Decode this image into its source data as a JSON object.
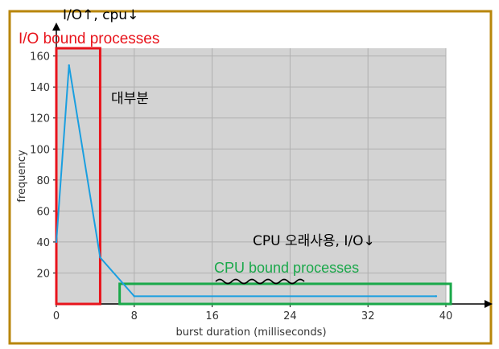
{
  "chart_data": {
    "type": "line",
    "xlabel": "burst duration (milliseconds)",
    "ylabel": "frequency",
    "xlim": [
      0,
      40
    ],
    "ylim": [
      0,
      165
    ],
    "x_ticks": [
      0,
      8,
      16,
      24,
      32,
      40
    ],
    "y_ticks": [
      20,
      40,
      60,
      80,
      100,
      120,
      140,
      160
    ],
    "grid": true,
    "series": [
      {
        "x": [
          0,
          1.3,
          4.5,
          8,
          39
        ],
        "y": [
          40,
          154,
          30,
          5,
          5
        ]
      }
    ],
    "annotations": {
      "io_label": "I/O bound processes",
      "cpu_label": "CPU bound processes",
      "handwritten_top": "I/O↑, cpu↓",
      "handwritten_mid": "대부분",
      "handwritten_cpu": "CPU 오래사용, I/O↓"
    },
    "io_box": {
      "x": [
        0,
        4.5
      ],
      "y": [
        0,
        165
      ]
    },
    "cpu_box": {
      "x": [
        6.5,
        40.5
      ],
      "y": [
        0,
        13
      ]
    }
  },
  "colors": {
    "plot_bg": "#d3d3d3",
    "grid": "#b0b0b0",
    "line": "#1a9fe0",
    "io_box": "#e8141c",
    "cpu_box": "#1aa84a",
    "frame": "#b8860b"
  }
}
